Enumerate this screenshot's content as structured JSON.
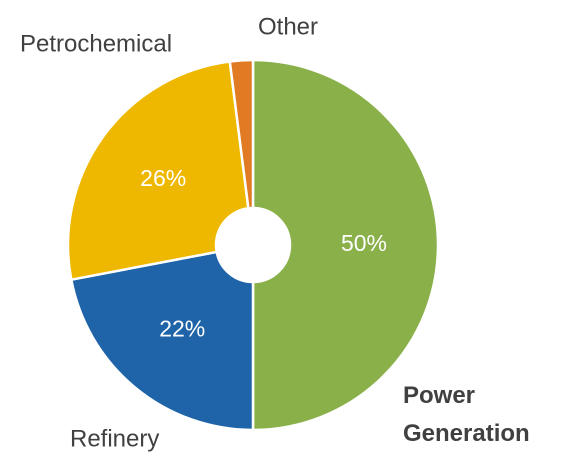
{
  "chart_data": {
    "type": "donut",
    "categories": [
      "Power Generation",
      "Refinery",
      "Petrochemical",
      "Other"
    ],
    "values": [
      50,
      22,
      26,
      2
    ],
    "value_labels": [
      "50%",
      "22%",
      "26%",
      null
    ],
    "colors": [
      "#8ab04a",
      "#1f64a8",
      "#efb800",
      "#e07b24"
    ]
  }
}
